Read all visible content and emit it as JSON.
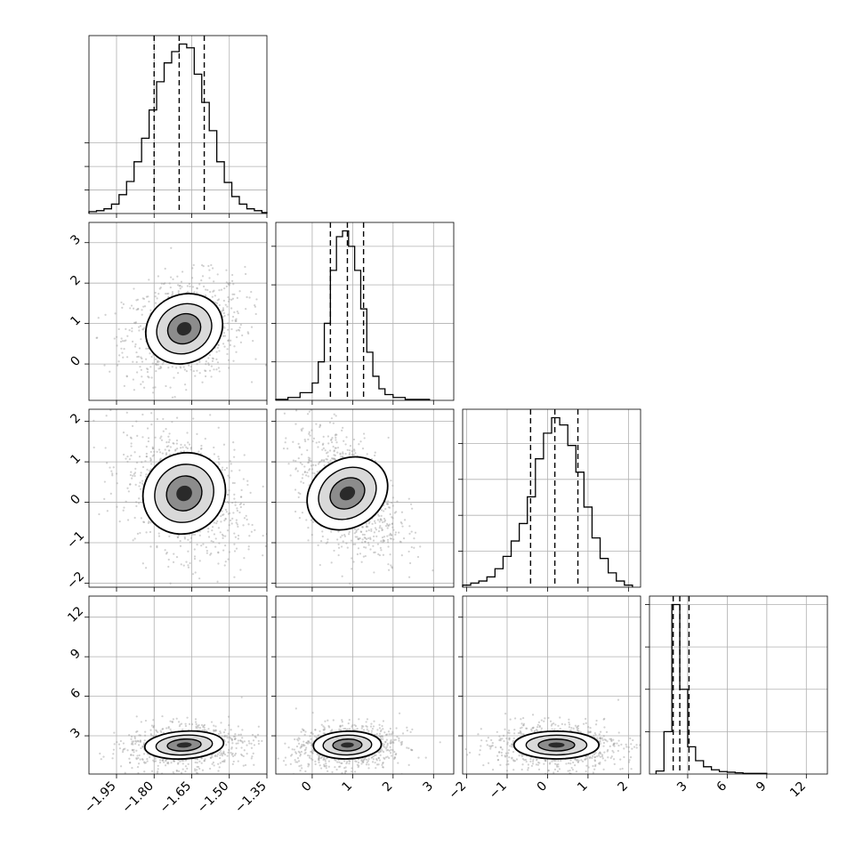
{
  "chart_data": {
    "type": "corner",
    "title": "",
    "grid": true,
    "parameters": [
      {
        "index": 0,
        "range": [
          -2.06,
          -1.35
        ],
        "ticks": [
          -1.95,
          -1.8,
          -1.65,
          -1.5,
          -1.35
        ],
        "tick_labels": [
          "−1.95",
          "−1.80",
          "−1.65",
          "−1.50",
          "−1.35"
        ],
        "quantiles": [
          -1.8,
          -1.7,
          -1.6
        ],
        "hist_bin_edges": [
          -2.06,
          -2.03,
          -2.0,
          -1.97,
          -1.94,
          -1.91,
          -1.88,
          -1.85,
          -1.82,
          -1.79,
          -1.76,
          -1.73,
          -1.7,
          -1.67,
          -1.64,
          -1.61,
          -1.58,
          -1.55,
          -1.52,
          -1.49,
          -1.46,
          -1.43,
          -1.4,
          -1.37,
          -1.35
        ],
        "hist_counts": [
          2,
          3,
          5,
          10,
          20,
          34,
          55,
          80,
          110,
          140,
          160,
          172,
          180,
          176,
          148,
          118,
          88,
          55,
          33,
          18,
          10,
          5,
          3,
          1
        ],
        "density_center": -1.68,
        "density_sigma": 0.075
      },
      {
        "index": 1,
        "range": [
          -0.9,
          3.5
        ],
        "ticks": [
          0,
          1,
          2,
          3
        ],
        "tick_labels": [
          "0",
          "1",
          "2",
          "3"
        ],
        "quantiles": [
          0.45,
          0.87,
          1.27
        ],
        "hist_bin_edges": [
          -0.9,
          -0.6,
          -0.3,
          0.0,
          0.15,
          0.3,
          0.45,
          0.6,
          0.75,
          0.9,
          1.05,
          1.2,
          1.35,
          1.5,
          1.65,
          1.8,
          2.0,
          2.3,
          2.6,
          2.9
        ],
        "hist_counts": [
          1,
          3,
          8,
          18,
          40,
          80,
          135,
          170,
          176,
          160,
          135,
          95,
          50,
          25,
          12,
          6,
          3,
          1,
          1
        ],
        "density_center": 0.87,
        "density_sigma": 0.4
      },
      {
        "index": 2,
        "range": [
          -2.1,
          2.3
        ],
        "ticks": [
          -2,
          -1,
          0,
          1,
          2
        ],
        "tick_labels": [
          "−2",
          "−1",
          "0",
          "1",
          "2"
        ],
        "quantiles": [
          -0.42,
          0.18,
          0.75
        ],
        "hist_bin_edges": [
          -2.1,
          -1.9,
          -1.7,
          -1.5,
          -1.3,
          -1.1,
          -0.9,
          -0.7,
          -0.5,
          -0.3,
          -0.1,
          0.1,
          0.3,
          0.5,
          0.7,
          0.9,
          1.1,
          1.3,
          1.5,
          1.7,
          1.9,
          2.1
        ],
        "hist_counts": [
          2,
          4,
          6,
          10,
          18,
          30,
          45,
          62,
          88,
          125,
          150,
          165,
          158,
          138,
          112,
          78,
          48,
          28,
          14,
          6,
          2
        ],
        "density_center": 0.22,
        "density_sigma": 0.5
      },
      {
        "index": 3,
        "range": [
          0.1,
          13.6
        ],
        "ticks": [
          3,
          6,
          9,
          12
        ],
        "tick_labels": [
          "3",
          "6",
          "9",
          "12"
        ],
        "quantiles": [
          1.9,
          2.4,
          3.1
        ],
        "hist_bin_edges": [
          0.6,
          1.2,
          1.8,
          2.4,
          3.0,
          3.6,
          4.2,
          4.8,
          5.4,
          6.0,
          6.6,
          7.2,
          8.0,
          9.0
        ],
        "hist_counts": [
          5,
          70,
          280,
          140,
          45,
          22,
          12,
          7,
          4,
          3,
          2,
          1,
          1
        ],
        "density_center": 2.3,
        "density_sigma": 0.5
      }
    ],
    "diagonal_y_ticks": [
      {
        "row": 0,
        "ticks": [
          25,
          50,
          75
        ]
      },
      {
        "row": 1,
        "ticks": [
          40,
          80,
          120,
          160
        ]
      },
      {
        "row": 2,
        "ticks": [
          35,
          70,
          105,
          140
        ]
      },
      {
        "row": 3,
        "ticks": [
          70,
          140,
          210,
          280
        ]
      }
    ],
    "offdiag_correlations": [
      {
        "row": 1,
        "col": 0,
        "rho": 0.2
      },
      {
        "row": 2,
        "col": 0,
        "rho": -0.35
      },
      {
        "row": 2,
        "col": 1,
        "rho": -0.45
      },
      {
        "row": 3,
        "col": 0,
        "rho": 0.15
      },
      {
        "row": 3,
        "col": 1,
        "rho": 0.05
      },
      {
        "row": 3,
        "col": 2,
        "rho": 0.0
      }
    ]
  }
}
